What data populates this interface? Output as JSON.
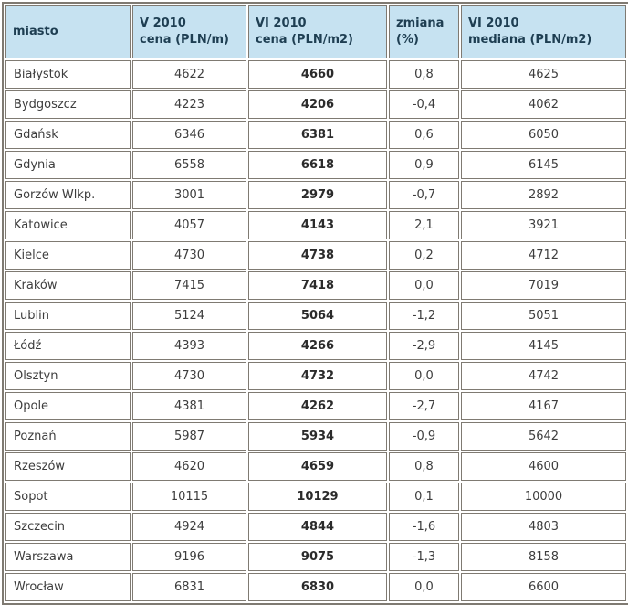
{
  "colors": {
    "header_bg": "#c6e2f1",
    "border": "#7f7a72",
    "header_text": "#1e3e52",
    "cell_text": "#3d3d3d"
  },
  "chart_data": {
    "type": "table",
    "columns": [
      {
        "line1": "miasto",
        "line2": ""
      },
      {
        "line1": "V 2010",
        "line2": "cena (PLN/m)"
      },
      {
        "line1": "VI 2010",
        "line2": "cena (PLN/m2)"
      },
      {
        "line1": "zmiana",
        "line2": "(%)"
      },
      {
        "line1": "VI 2010",
        "line2": "mediana (PLN/m2)"
      }
    ],
    "rows": [
      {
        "city": "Białystok",
        "v2010": "4622",
        "vi2010": "4660",
        "zmiana": "0,8",
        "mediana": "4625"
      },
      {
        "city": "Bydgoszcz",
        "v2010": "4223",
        "vi2010": "4206",
        "zmiana": "-0,4",
        "mediana": "4062"
      },
      {
        "city": "Gdańsk",
        "v2010": "6346",
        "vi2010": "6381",
        "zmiana": "0,6",
        "mediana": "6050"
      },
      {
        "city": "Gdynia",
        "v2010": "6558",
        "vi2010": "6618",
        "zmiana": "0,9",
        "mediana": "6145"
      },
      {
        "city": "Gorzów Wlkp.",
        "v2010": "3001",
        "vi2010": "2979",
        "zmiana": "-0,7",
        "mediana": "2892"
      },
      {
        "city": "Katowice",
        "v2010": "4057",
        "vi2010": "4143",
        "zmiana": "2,1",
        "mediana": "3921"
      },
      {
        "city": "Kielce",
        "v2010": "4730",
        "vi2010": "4738",
        "zmiana": "0,2",
        "mediana": "4712"
      },
      {
        "city": "Kraków",
        "v2010": "7415",
        "vi2010": "7418",
        "zmiana": "0,0",
        "mediana": "7019"
      },
      {
        "city": "Lublin",
        "v2010": "5124",
        "vi2010": "5064",
        "zmiana": "-1,2",
        "mediana": "5051"
      },
      {
        "city": "Łódź",
        "v2010": "4393",
        "vi2010": "4266",
        "zmiana": "-2,9",
        "mediana": "4145"
      },
      {
        "city": "Olsztyn",
        "v2010": "4730",
        "vi2010": "4732",
        "zmiana": "0,0",
        "mediana": "4742"
      },
      {
        "city": "Opole",
        "v2010": "4381",
        "vi2010": "4262",
        "zmiana": "-2,7",
        "mediana": "4167"
      },
      {
        "city": "Poznań",
        "v2010": "5987",
        "vi2010": "5934",
        "zmiana": "-0,9",
        "mediana": "5642"
      },
      {
        "city": "Rzeszów",
        "v2010": "4620",
        "vi2010": "4659",
        "zmiana": "0,8",
        "mediana": "4600"
      },
      {
        "city": "Sopot",
        "v2010": "10115",
        "vi2010": "10129",
        "zmiana": "0,1",
        "mediana": "10000"
      },
      {
        "city": "Szczecin",
        "v2010": "4924",
        "vi2010": "4844",
        "zmiana": "-1,6",
        "mediana": "4803"
      },
      {
        "city": "Warszawa",
        "v2010": "9196",
        "vi2010": "9075",
        "zmiana": "-1,3",
        "mediana": "8158"
      },
      {
        "city": "Wrocław",
        "v2010": "6831",
        "vi2010": "6830",
        "zmiana": "0,0",
        "mediana": "6600"
      }
    ]
  }
}
